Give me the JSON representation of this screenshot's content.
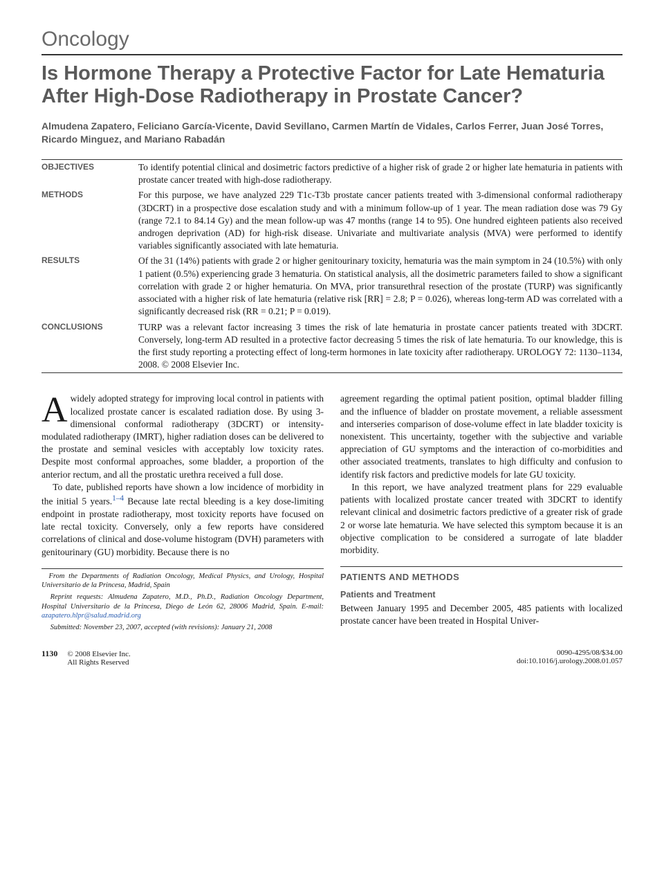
{
  "section_label": "Oncology",
  "title": "Is Hormone Therapy a Protective Factor for Late Hematuria After High-Dose Radiotherapy in Prostate Cancer?",
  "authors": "Almudena Zapatero, Feliciano García-Vicente, David Sevillano, Carmen Martín de Vidales, Carlos Ferrer, Juan José Torres, Ricardo Minguez, and Mariano Rabadán",
  "abstract": {
    "objectives": {
      "label": "OBJECTIVES",
      "text": "To identify potential clinical and dosimetric factors predictive of a higher risk of grade 2 or higher late hematuria in patients with prostate cancer treated with high-dose radiotherapy."
    },
    "methods": {
      "label": "METHODS",
      "text": "For this purpose, we have analyzed 229 T1c-T3b prostate cancer patients treated with 3-dimensional conformal radiotherapy (3DCRT) in a prospective dose escalation study and with a minimum follow-up of 1 year. The mean radiation dose was 79 Gy (range 72.1 to 84.14 Gy) and the mean follow-up was 47 months (range 14 to 95). One hundred eighteen patients also received androgen deprivation (AD) for high-risk disease. Univariate and multivariate analysis (MVA) were performed to identify variables significantly associated with late hematuria."
    },
    "results": {
      "label": "RESULTS",
      "text": "Of the 31 (14%) patients with grade 2 or higher genitourinary toxicity, hematuria was the main symptom in 24 (10.5%) with only 1 patient (0.5%) experiencing grade 3 hematuria. On statistical analysis, all the dosimetric parameters failed to show a significant correlation with grade 2 or higher hematuria. On MVA, prior transurethral resection of the prostate (TURP) was significantly associated with a higher risk of late hematuria (relative risk [RR] = 2.8; P = 0.026), whereas long-term AD was correlated with a significantly decreased risk (RR = 0.21; P = 0.019)."
    },
    "conclusions": {
      "label": "CONCLUSIONS",
      "text": "TURP was a relevant factor increasing 3 times the risk of late hematuria in prostate cancer patients treated with 3DCRT. Conversely, long-term AD resulted in a protective factor decreasing 5 times the risk of late hematuria. To our knowledge, this is the first study reporting a protecting effect of long-term hormones in late toxicity after radiotherapy.  UROLOGY 72: 1130–1134, 2008. © 2008 Elsevier Inc."
    }
  },
  "body": {
    "dropcap": "A",
    "p1_after_cap": "widely adopted strategy for improving local control in patients with localized prostate cancer is escalated radiation dose. By using 3-dimensional conformal radiotherapy (3DCRT) or intensity-modulated radiotherapy (IMRT), higher radiation doses can be delivered to the prostate and seminal vesicles with acceptably low toxicity rates. Despite most conformal approaches, some bladder, a proportion of the anterior rectum, and all the prostatic urethra received a full dose.",
    "p2_a": "To date, published reports have shown a low incidence of morbidity in the initial 5 years.",
    "p2_ref": "1–4",
    "p2_b": " Because late rectal bleeding is a key dose-limiting endpoint in prostate radiotherapy, most toxicity reports have focused on late rectal toxicity. Conversely, only a few reports have considered correlations of clinical and dose-volume histogram (DVH) parameters with genitourinary (GU) morbidity. Because there is no",
    "p3": "agreement regarding the optimal patient position, optimal bladder filling and the influence of bladder on prostate movement, a reliable assessment and interseries comparison of dose-volume effect in late bladder toxicity is nonexistent. This uncertainty, together with the subjective and variable appreciation of GU symptoms and the interaction of co-morbidities and other associated treatments, translates to high difficulty and confusion to identify risk factors and predictive models for late GU toxicity.",
    "p4": "In this report, we have analyzed treatment plans for 229 evaluable patients with localized prostate cancer treated with 3DCRT to identify relevant clinical and dosimetric factors predictive of a greater risk of grade 2 or worse late hematuria. We have selected this symptom because it is an objective complication to be considered a surrogate of late bladder morbidity."
  },
  "methods_section": {
    "heading": "PATIENTS AND METHODS",
    "sub1": "Patients and Treatment",
    "sub1_text": "Between January 1995 and December 2005, 485 patients with localized prostate cancer have been treated in Hospital Univer-"
  },
  "affiliations": {
    "dept": "From the Departments of Radiation Oncology, Medical Physics, and Urology, Hospital Universitario de la Princesa, Madrid, Spain",
    "reprint": "Reprint requests: Almudena Zapatero, M.D., Ph.D., Radiation Oncology Department, Hospital Universitario de la Princesa, Diego de León 62, 28006 Madrid, Spain. E-mail: ",
    "email": "azapatero.hlpr@salud.madrid.org",
    "submitted": "Submitted: November 23, 2007, accepted (with revisions): January 21, 2008"
  },
  "footer": {
    "page": "1130",
    "copyright": "© 2008 Elsevier Inc.",
    "rights": "All Rights Reserved",
    "issn": "0090-4295/08/$34.00",
    "doi": "doi:10.1016/j.urology.2008.01.057"
  },
  "colors": {
    "heading_gray": "#5a5a5a",
    "rule": "#333333",
    "link": "#2a5db0",
    "bg": "#ffffff"
  },
  "typography": {
    "section_label_size": 30,
    "title_size": 29,
    "authors_size": 14,
    "abstract_label_size": 12,
    "abstract_text_size": 13.5,
    "body_size": 13.5,
    "dropcap_size": 52,
    "footer_size": 11
  }
}
